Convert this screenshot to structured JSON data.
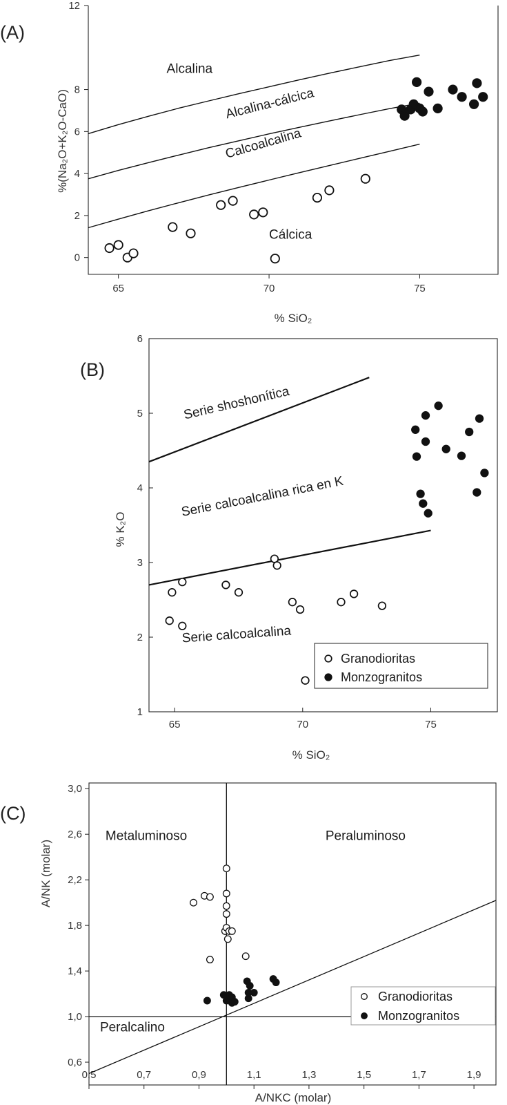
{
  "chart_data": [
    {
      "type": "scatter",
      "panel_label": "(A)",
      "xlabel": "% SiO₂",
      "ylabel": "%(Na₂O+K₂O-CaO)",
      "xlim": [
        64,
        77.6
      ],
      "ylim": [
        -0.8,
        12
      ],
      "xticks": [
        65,
        70,
        75
      ],
      "yticks": [
        0,
        2,
        4,
        6,
        8,
        12
      ],
      "grid": false,
      "boundary_lines": [
        {
          "name": "alcalina / alcalina-cálcica",
          "x": [
            64,
            65,
            66,
            67,
            68,
            69,
            70,
            71,
            72,
            73,
            74,
            75
          ],
          "y": [
            5.9,
            6.33,
            6.73,
            7.11,
            7.46,
            7.8,
            8.13,
            8.46,
            8.78,
            9.08,
            9.38,
            9.64
          ]
        },
        {
          "name": "alcalina-cálcica / calcoalcalina",
          "x": [
            64,
            65,
            66,
            67,
            68,
            69,
            70,
            71,
            72,
            73,
            74,
            75
          ],
          "y": [
            3.75,
            4.15,
            4.52,
            4.88,
            5.23,
            5.56,
            5.89,
            6.2,
            6.5,
            6.8,
            7.09,
            7.35
          ]
        },
        {
          "name": "calcoalcalina / cálcica",
          "x": [
            64,
            65,
            66,
            67,
            68,
            69,
            70,
            71,
            72,
            73,
            74,
            75
          ],
          "y": [
            1.42,
            1.83,
            2.23,
            2.61,
            2.98,
            3.34,
            3.69,
            4.04,
            4.38,
            4.72,
            5.06,
            5.4
          ]
        }
      ],
      "field_labels": [
        {
          "text": "Alcalina",
          "x": 66.6,
          "y": 8.8,
          "angle": 0
        },
        {
          "text": "Alcalina-cálcica",
          "x": 68.6,
          "y": 6.62,
          "angle": -14
        },
        {
          "text": "Calcoalcalina",
          "x": 68.6,
          "y": 4.73,
          "angle": -16
        },
        {
          "text": "Cálcica",
          "x": 70.0,
          "y": 0.9,
          "angle": 0
        }
      ],
      "series": [
        {
          "marker": "open",
          "x": [
            64.7,
            65.0,
            65.3,
            65.5,
            66.8,
            67.4,
            68.4,
            68.8,
            69.5,
            69.8,
            70.2,
            71.6,
            72.0,
            73.2
          ],
          "y": [
            0.45,
            0.6,
            0.0,
            0.2,
            1.45,
            1.15,
            2.5,
            2.7,
            2.05,
            2.15,
            -0.05,
            2.85,
            3.2,
            3.75
          ]
        },
        {
          "marker": "filled",
          "x": [
            74.4,
            74.5,
            74.7,
            74.8,
            74.9,
            75.0,
            75.1,
            75.3,
            75.6,
            76.1,
            76.4,
            76.8,
            76.9,
            77.1
          ],
          "y": [
            7.05,
            6.75,
            7.05,
            7.3,
            8.35,
            7.1,
            6.95,
            7.9,
            7.1,
            8.0,
            7.65,
            7.3,
            8.3,
            7.65
          ]
        }
      ]
    },
    {
      "type": "scatter",
      "panel_label": "(B)",
      "xlabel": "% SiO₂",
      "ylabel": "% K₂O",
      "xlim": [
        64,
        77.6
      ],
      "ylim": [
        1,
        6
      ],
      "xticks": [
        65,
        70,
        75
      ],
      "yticks": [
        1,
        2,
        3,
        4,
        5,
        6
      ],
      "grid": false,
      "legend_position": "bottom-right",
      "boundary_lines": [
        {
          "name": "shoshonítica / rica en K",
          "x": [
            64,
            72.6
          ],
          "y": [
            4.35,
            5.48
          ]
        },
        {
          "name": "rica en K / calcoalcalina",
          "x": [
            64,
            75.0
          ],
          "y": [
            2.7,
            3.43
          ]
        }
      ],
      "field_labels": [
        {
          "text": "Serie shoshonítica",
          "x": 65.4,
          "y": 4.92,
          "angle": -13
        },
        {
          "text": "Serie calcoalcalina rica en K",
          "x": 65.3,
          "y": 3.62,
          "angle": -11
        },
        {
          "text": "Serie calcoalcalina",
          "x": 65.3,
          "y": 1.93,
          "angle": -4
        }
      ],
      "series": [
        {
          "name": "Granodioritas",
          "marker": "open",
          "x": [
            64.8,
            64.9,
            65.3,
            65.3,
            67.0,
            67.5,
            68.9,
            69.0,
            69.6,
            69.9,
            70.1,
            71.5,
            72.0,
            73.1
          ],
          "y": [
            2.22,
            2.6,
            2.74,
            2.15,
            2.7,
            2.6,
            3.05,
            2.96,
            2.47,
            2.37,
            1.42,
            2.47,
            2.58,
            2.42
          ]
        },
        {
          "name": "Monzogranitos",
          "marker": "filled",
          "x": [
            74.4,
            74.45,
            74.6,
            74.7,
            74.8,
            74.8,
            74.9,
            75.3,
            75.6,
            76.2,
            76.5,
            76.8,
            76.9,
            77.1
          ],
          "y": [
            4.78,
            4.42,
            3.92,
            3.79,
            4.97,
            4.62,
            3.66,
            5.1,
            4.52,
            4.43,
            4.75,
            3.94,
            4.93,
            4.2
          ]
        }
      ]
    },
    {
      "type": "scatter",
      "panel_label": "(C)",
      "xlabel": "A/NKC (molar)",
      "ylabel": "A/NK (molar)",
      "xlim": [
        0.5,
        1.98
      ],
      "ylim": [
        0.4,
        3.05
      ],
      "xticks": [
        "0,5",
        "0,7",
        "0,9",
        "1,1",
        "1,3",
        "1,5",
        "1,7",
        "1,9"
      ],
      "yticks": [
        "0,6",
        "1,0",
        "1,4",
        "1,8",
        "2,2",
        "2,6",
        "3,0"
      ],
      "grid": false,
      "legend_position": "bottom-right",
      "boundary_lines": [
        {
          "name": "A/NKC = 1",
          "x": [
            1.0,
            1.0
          ],
          "y": [
            0.4,
            3.05
          ]
        },
        {
          "name": "A/NK = 1",
          "x": [
            0.5,
            1.98
          ],
          "y": [
            1.0,
            1.0
          ]
        },
        {
          "name": "A/CNK = A/NK",
          "x": [
            0.5,
            1.98
          ],
          "y": [
            0.5,
            2.02
          ]
        }
      ],
      "field_labels": [
        {
          "text": "Metaluminoso",
          "x": 0.56,
          "y": 2.55,
          "angle": 0
        },
        {
          "text": "Peraluminoso",
          "x": 1.36,
          "y": 2.55,
          "angle": 0
        },
        {
          "text": "Peralcalino",
          "x": 0.54,
          "y": 0.87,
          "angle": 0
        }
      ],
      "series": [
        {
          "name": "Granodioritas",
          "marker": "open",
          "x": [
            0.88,
            0.92,
            0.94,
            0.94,
            0.995,
            1.0,
            1.0,
            1.0,
            1.0,
            1.0,
            1.005,
            1.01,
            1.02,
            1.07
          ],
          "y": [
            2.0,
            2.06,
            2.05,
            1.5,
            1.75,
            2.3,
            2.08,
            1.97,
            1.9,
            1.78,
            1.68,
            1.75,
            1.75,
            1.53
          ]
        },
        {
          "name": "Monzogranitos",
          "marker": "filled",
          "x": [
            0.93,
            0.99,
            1.0,
            1.01,
            1.02,
            1.02,
            1.03,
            1.075,
            1.08,
            1.08,
            1.085,
            1.1,
            1.17,
            1.18
          ],
          "y": [
            1.14,
            1.19,
            1.14,
            1.19,
            1.12,
            1.17,
            1.13,
            1.31,
            1.16,
            1.21,
            1.27,
            1.21,
            1.33,
            1.3
          ]
        }
      ]
    }
  ]
}
